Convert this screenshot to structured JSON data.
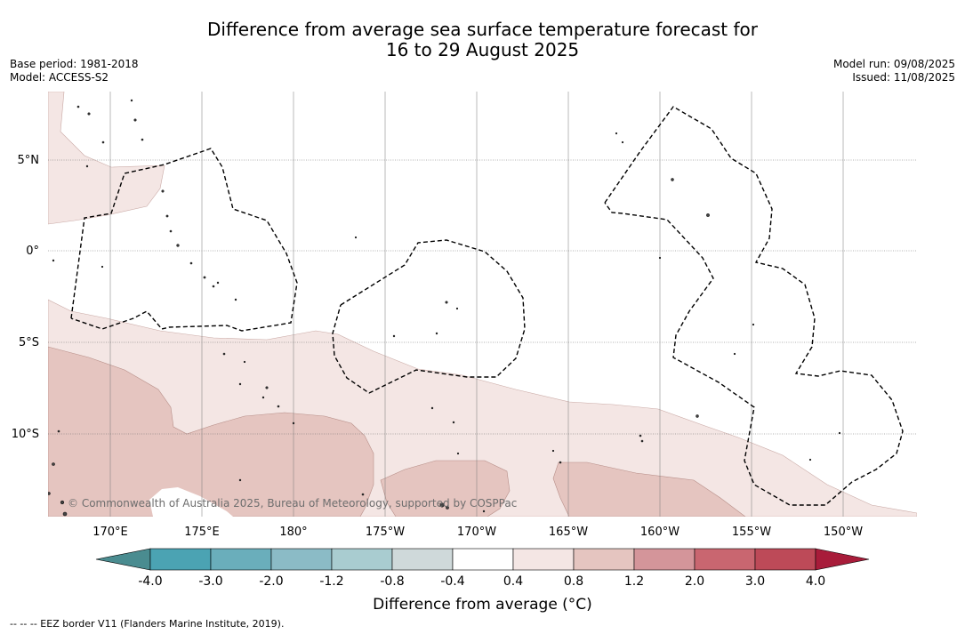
{
  "title_line1": "Difference from average sea surface temperature forecast for",
  "title_line2": "16 to 29 August 2025",
  "base_period": "Base period: 1981-2018",
  "model": "Model: ACCESS-S2",
  "model_run": "Model run: 09/08/2025",
  "issued": "Issued: 11/08/2025",
  "copyright": "© Commonwealth of Australia 2025, Bureau of Meteorology, supported by COSPPac",
  "lat_labels": [
    "5°N",
    "0°",
    "5°S",
    "10°S"
  ],
  "lon_labels": [
    "170°E",
    "175°E",
    "180°",
    "175°W",
    "170°W",
    "165°W",
    "160°W",
    "155°W",
    "150°W"
  ],
  "colorbar": {
    "title": "Difference from average (°C)",
    "tick_labels": [
      "-4.0",
      "-3.0",
      "-2.0",
      "-1.2",
      "-0.8",
      "-0.4",
      "0.4",
      "0.8",
      "1.2",
      "2.0",
      "3.0",
      "4.0"
    ],
    "colors": [
      "#4a8c90",
      "#4ba3b3",
      "#6aaebb",
      "#8bbbc6",
      "#a9ccd0",
      "#cfd9da",
      "#ffffff",
      "#f4e6e4",
      "#e5c5c0",
      "#d4959a",
      "#c96670",
      "#bd4a58",
      "#a81c3a"
    ]
  },
  "footnote": "--  --  -- EEZ border V11 (Flanders Marine Institute, 2019)."
}
